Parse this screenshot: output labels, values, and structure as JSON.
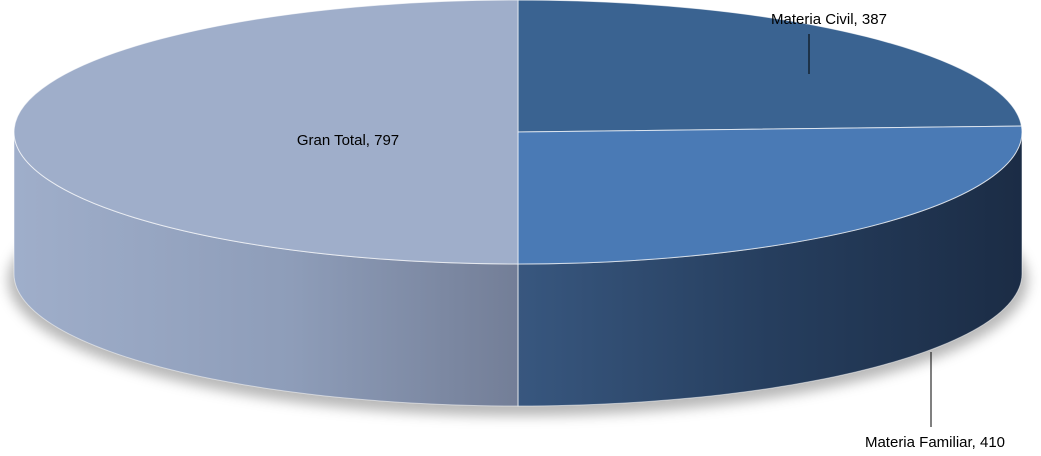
{
  "chart_data": {
    "type": "pie",
    "style": "3d",
    "title": "",
    "slices": [
      {
        "name": "Materia Civil",
        "value": 387,
        "label": "Materia Civil, 387",
        "color": "#3A6391"
      },
      {
        "name": "Materia Familiar",
        "value": 410,
        "label": "Materia Familiar, 410",
        "color": "#4A7AB5"
      },
      {
        "name": "Gran Total",
        "value": 797,
        "label": "Gran Total, 797",
        "color": "#9FAECA"
      }
    ],
    "legend": "none"
  }
}
